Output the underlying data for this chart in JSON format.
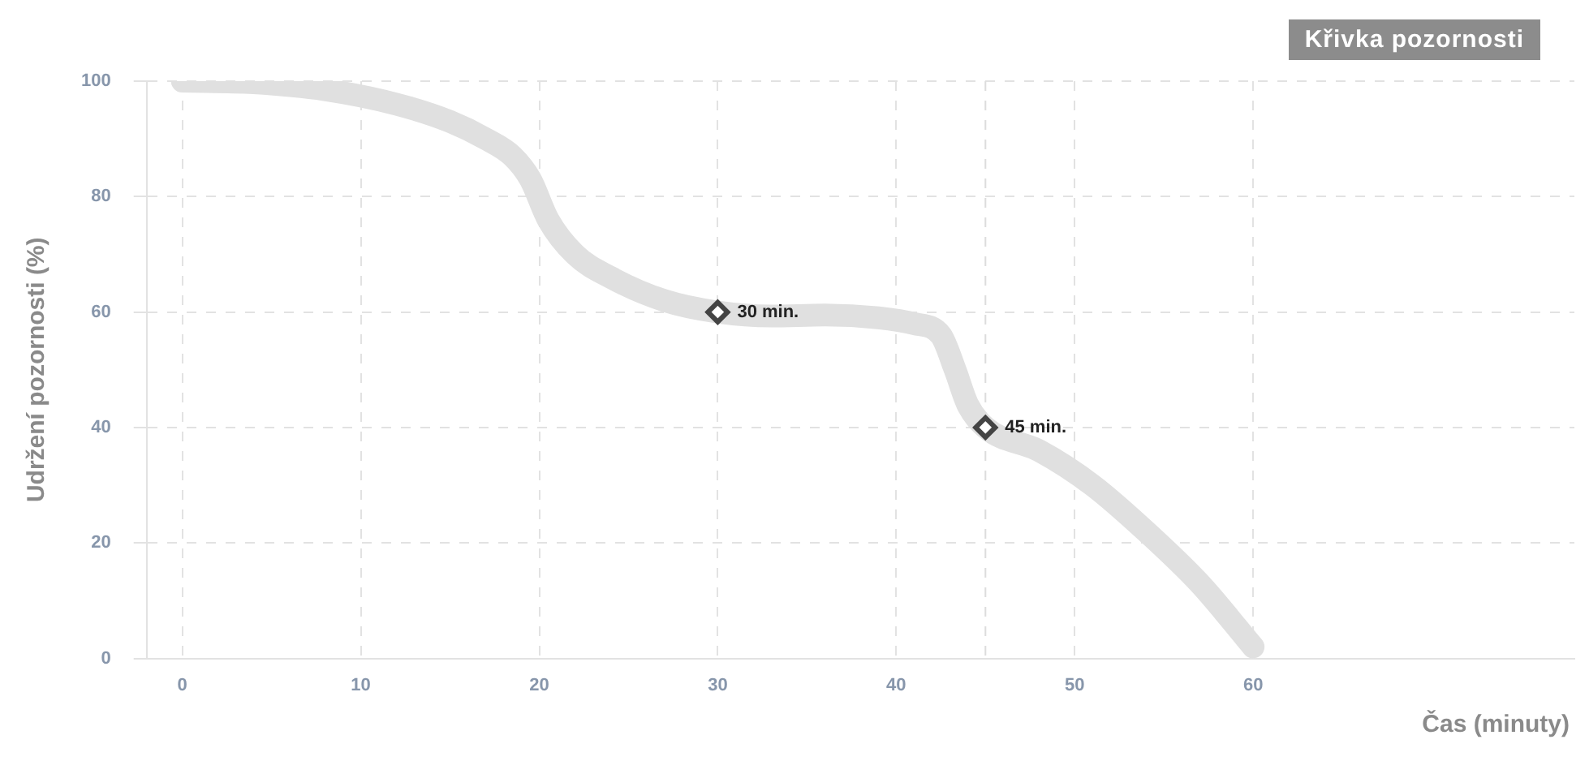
{
  "chart_data": {
    "type": "line",
    "title": "Křivka pozornosti",
    "xlabel": "Čas (minuty)",
    "ylabel": "Udržení pozornosti (%)",
    "x": [
      0,
      4,
      8,
      12,
      15,
      17,
      18.5,
      19.5,
      20.5,
      22,
      24,
      27,
      30,
      33,
      36,
      39,
      41,
      42.5,
      43.3,
      44,
      45,
      48,
      51,
      54,
      57,
      60
    ],
    "series": [
      {
        "color": "#e0e0e0",
        "values": [
          100,
          99.7,
          98.5,
          96,
          93,
          90,
          87,
          83,
          76,
          70,
          66,
          62,
          60,
          59.3,
          59.5,
          59,
          58,
          56,
          50,
          44,
          40,
          36,
          30,
          22,
          13,
          2
        ]
      },
      {
        "type": "scatter",
        "color": "#444444",
        "marker": "diamond",
        "x": [
          30,
          45
        ],
        "values": [
          60,
          40
        ]
      }
    ],
    "annotations": [
      {
        "text": "30 min.",
        "x": 30,
        "y": 60
      },
      {
        "text": "45 min.",
        "x": 45,
        "y": 40
      }
    ],
    "xlim": [
      -2,
      78
    ],
    "xticks": [
      0,
      10,
      20,
      30,
      40,
      50,
      60
    ],
    "ylim": [
      0,
      100
    ],
    "yticks": [
      0,
      20,
      40,
      60,
      80,
      100
    ],
    "ref_lines": [
      {
        "axis": "x",
        "value": 45,
        "color": "#dddddd",
        "line_style": "dashed"
      }
    ],
    "grid": true,
    "legend": false,
    "marker": "none",
    "line_style": "solid"
  }
}
